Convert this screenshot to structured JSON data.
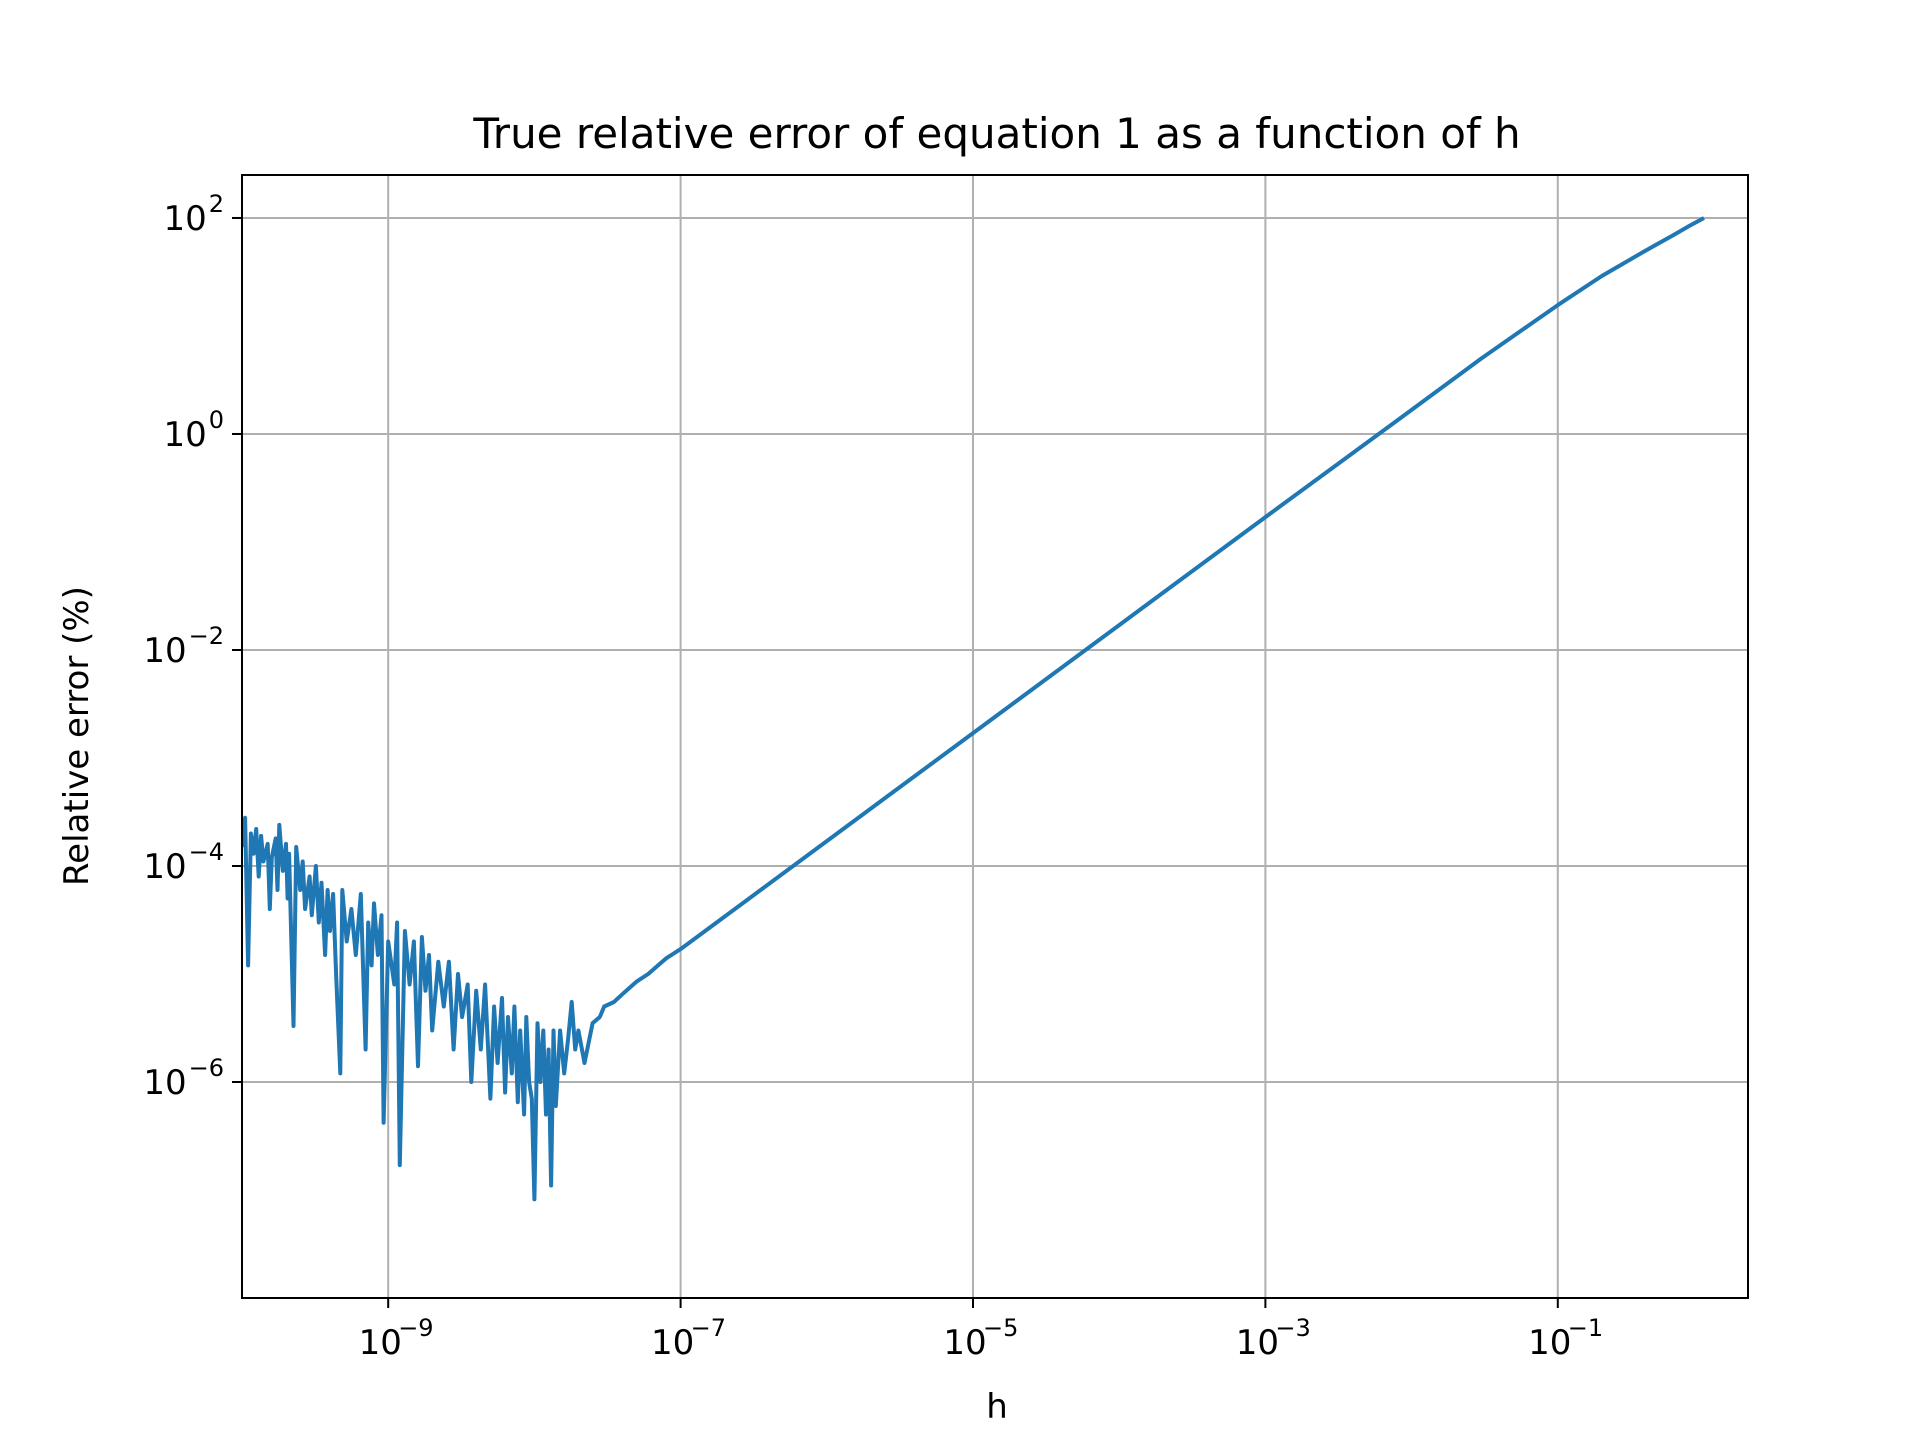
{
  "chart_data": {
    "type": "line",
    "title": "True relative error of equation 1 as a function of h",
    "xlabel": "h",
    "ylabel": "Relative error (%)",
    "xscale": "log",
    "yscale": "log",
    "xlim": [
      1e-10,
      2
    ],
    "ylim": [
      1e-08,
      250
    ],
    "grid": true,
    "colors": {
      "series": "#1f77b4",
      "grid": "#b0b0b0",
      "axes": "#000000"
    },
    "x_ticks": [
      {
        "base": "10",
        "exp": "−9",
        "value": 1e-09
      },
      {
        "base": "10",
        "exp": "−7",
        "value": 1e-07
      },
      {
        "base": "10",
        "exp": "−5",
        "value": 1e-05
      },
      {
        "base": "10",
        "exp": "−3",
        "value": 0.001
      },
      {
        "base": "10",
        "exp": "−1",
        "value": 0.1
      }
    ],
    "y_ticks": [
      {
        "base": "10",
        "exp": "2",
        "value": 100
      },
      {
        "base": "10",
        "exp": "0",
        "value": 1
      },
      {
        "base": "10",
        "exp": "−2",
        "value": 0.01
      },
      {
        "base": "10",
        "exp": "−4",
        "value": 0.0001
      },
      {
        "base": "10",
        "exp": "−6",
        "value": 1e-06
      }
    ],
    "series": [
      {
        "values": [
          [
            1e-10,
            0.00015
          ],
          [
            1.05e-10,
            0.00028
          ],
          [
            1.1e-10,
            1.2e-05
          ],
          [
            1.15e-10,
            0.0002
          ],
          [
            1.2e-10,
            0.00013
          ],
          [
            1.25e-10,
            0.00022
          ],
          [
            1.3e-10,
            8e-05
          ],
          [
            1.35e-10,
            0.00019
          ],
          [
            1.4e-10,
            0.00011
          ],
          [
            1.5e-10,
            0.00016
          ],
          [
            1.55e-10,
            4e-05
          ],
          [
            1.6e-10,
            0.00012
          ],
          [
            1.7e-10,
            0.00018
          ],
          [
            1.75e-10,
            6e-05
          ],
          [
            1.8e-10,
            0.00024
          ],
          [
            1.9e-10,
            9e-05
          ],
          [
            2e-10,
            0.00016
          ],
          [
            2.05e-10,
            5e-05
          ],
          [
            2.1e-10,
            0.00013
          ],
          [
            2.25e-10,
            3.3e-06
          ],
          [
            2.35e-10,
            0.00015
          ],
          [
            2.5e-10,
            6e-05
          ],
          [
            2.6e-10,
            0.00011
          ],
          [
            2.7e-10,
            4e-05
          ],
          [
            2.9e-10,
            8e-05
          ],
          [
            3e-10,
            3.5e-05
          ],
          [
            3.2e-10,
            0.0001
          ],
          [
            3.35e-10,
            3e-05
          ],
          [
            3.5e-10,
            7e-05
          ],
          [
            3.7e-10,
            1.5e-05
          ],
          [
            3.85e-10,
            6e-05
          ],
          [
            4e-10,
            2.5e-05
          ],
          [
            4.2e-10,
            5.5e-05
          ],
          [
            4.4e-10,
            1e-05
          ],
          [
            4.7e-10,
            1.2e-06
          ],
          [
            4.85e-10,
            6e-05
          ],
          [
            5.2e-10,
            2e-05
          ],
          [
            5.6e-10,
            4e-05
          ],
          [
            6e-10,
            1.5e-05
          ],
          [
            6.5e-10,
            5.5e-05
          ],
          [
            7e-10,
            2e-06
          ],
          [
            7.3e-10,
            3e-05
          ],
          [
            7.7e-10,
            1.2e-05
          ],
          [
            8e-10,
            4.5e-05
          ],
          [
            8.5e-10,
            1.5e-05
          ],
          [
            9e-10,
            3.5e-05
          ],
          [
            9.3e-10,
            4.2e-07
          ],
          [
            1e-09,
            2e-05
          ],
          [
            1.1e-09,
            8e-06
          ],
          [
            1.15e-09,
            3e-05
          ],
          [
            1.2e-09,
            1.7e-07
          ],
          [
            1.3e-09,
            2.5e-05
          ],
          [
            1.4e-09,
            8e-06
          ],
          [
            1.5e-09,
            2e-05
          ],
          [
            1.6e-09,
            1.4e-06
          ],
          [
            1.7e-09,
            2.2e-05
          ],
          [
            1.8e-09,
            7e-06
          ],
          [
            1.9e-09,
            1.5e-05
          ],
          [
            2e-09,
            3e-06
          ],
          [
            2.2e-09,
            1.3e-05
          ],
          [
            2.4e-09,
            5e-06
          ],
          [
            2.6e-09,
            1.3e-05
          ],
          [
            2.8e-09,
            2e-06
          ],
          [
            3e-09,
            1e-05
          ],
          [
            3.2e-09,
            4e-06
          ],
          [
            3.5e-09,
            8e-06
          ],
          [
            3.7e-09,
            1e-06
          ],
          [
            4e-09,
            7e-06
          ],
          [
            4.3e-09,
            2e-06
          ],
          [
            4.6e-09,
            8e-06
          ],
          [
            5e-09,
            7e-07
          ],
          [
            5.3e-09,
            5e-06
          ],
          [
            5.6e-09,
            1.5e-06
          ],
          [
            6e-09,
            6e-06
          ],
          [
            6.3e-09,
            8e-07
          ],
          [
            6.6e-09,
            4e-06
          ],
          [
            7e-09,
            1.2e-06
          ],
          [
            7.3e-09,
            5e-06
          ],
          [
            7.7e-09,
            6.5e-07
          ],
          [
            8e-09,
            3e-06
          ],
          [
            8.5e-09,
            5e-07
          ],
          [
            8.8e-09,
            4e-06
          ],
          [
            9.2e-09,
            1e-06
          ],
          [
            9.6e-09,
            7e-07
          ],
          [
            1e-08,
            8.2e-08
          ],
          [
            1.05e-08,
            3.5e-06
          ],
          [
            1.1e-08,
            1e-06
          ],
          [
            1.15e-08,
            3e-06
          ],
          [
            1.2e-08,
            5e-07
          ],
          [
            1.25e-08,
            2e-06
          ],
          [
            1.3e-08,
            1.1e-07
          ],
          [
            1.35e-08,
            3e-06
          ],
          [
            1.4e-08,
            6e-07
          ],
          [
            1.5e-08,
            3e-06
          ],
          [
            1.6e-08,
            1.2e-06
          ],
          [
            1.7e-08,
            2.5e-06
          ],
          [
            1.8e-08,
            5.5e-06
          ],
          [
            1.9e-08,
            2e-06
          ],
          [
            2e-08,
            3e-06
          ],
          [
            2.2e-08,
            1.5e-06
          ],
          [
            2.5e-08,
            3.5e-06
          ],
          [
            2.8e-08,
            4e-06
          ],
          [
            3e-08,
            5e-06
          ],
          [
            3.5e-08,
            5.5e-06
          ],
          [
            4e-08,
            6.5e-06
          ],
          [
            4.5e-08,
            7.5e-06
          ],
          [
            5e-08,
            8.5e-06
          ],
          [
            6e-08,
            1e-05
          ],
          [
            7e-08,
            1.2e-05
          ],
          [
            8e-08,
            1.4e-05
          ],
          [
            1e-07,
            1.7e-05
          ],
          [
            1e-06,
            0.00017
          ],
          [
            1e-05,
            0.0017
          ],
          [
            0.0001,
            0.017
          ],
          [
            0.001,
            0.17
          ],
          [
            0.01,
            1.67
          ],
          [
            0.03,
            5.0
          ],
          [
            0.1,
            15.6
          ],
          [
            0.2,
            29.0
          ],
          [
            0.4,
            50.0
          ],
          [
            0.6,
            68.0
          ],
          [
            0.8,
            85.0
          ],
          [
            1.0,
            100.0
          ]
        ]
      }
    ]
  }
}
